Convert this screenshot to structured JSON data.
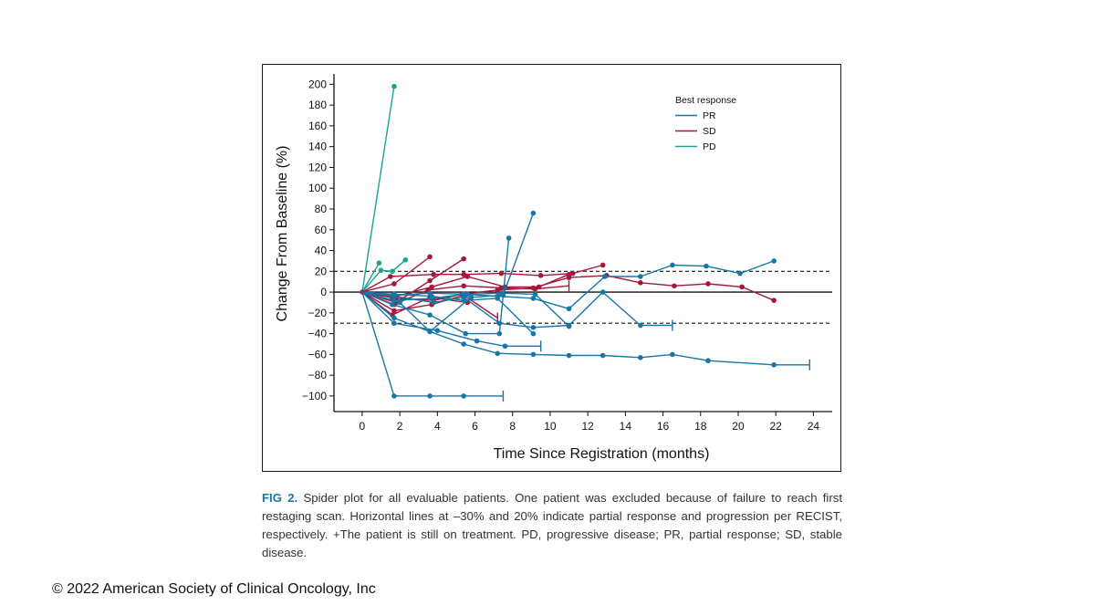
{
  "chart_data": {
    "type": "line",
    "xlabel": "Time Since Registration (months)",
    "ylabel": "Change From Baseline (%)",
    "xlim": [
      -1.5,
      25
    ],
    "ylim": [
      -115,
      210
    ],
    "x_ticks": [
      0,
      2,
      4,
      6,
      8,
      10,
      12,
      14,
      16,
      18,
      20,
      22,
      24
    ],
    "y_ticks": [
      200,
      180,
      160,
      140,
      120,
      100,
      80,
      60,
      40,
      20,
      0,
      -20,
      -40,
      -60,
      -80,
      -100
    ],
    "reference_lines": [
      {
        "y": 20,
        "style": "dashed"
      },
      {
        "y": 0,
        "style": "solid"
      },
      {
        "y": -30,
        "style": "dashed"
      }
    ],
    "legend": {
      "title": "Best response",
      "position": "top-right",
      "entries": [
        {
          "label": "PR",
          "color": "#1677a7"
        },
        {
          "label": "SD",
          "color": "#a6173b"
        },
        {
          "label": "PD",
          "color": "#1aa591"
        }
      ]
    },
    "series": [
      {
        "group": "PD",
        "color": "#1aa591",
        "points": [
          [
            0,
            0
          ],
          [
            1.7,
            198
          ]
        ]
      },
      {
        "group": "PD",
        "color": "#1aa591",
        "points": [
          [
            0,
            0
          ],
          [
            0.9,
            28
          ]
        ]
      },
      {
        "group": "PD",
        "color": "#1aa591",
        "points": [
          [
            0,
            0
          ],
          [
            1,
            21
          ],
          [
            1.6,
            20
          ],
          [
            2.3,
            31
          ]
        ]
      },
      {
        "group": "SD",
        "color": "#a6173b",
        "points": [
          [
            0,
            0
          ],
          [
            1.7,
            8
          ],
          [
            3.6,
            34
          ]
        ]
      },
      {
        "group": "SD",
        "color": "#a6173b",
        "points": [
          [
            0,
            0
          ],
          [
            1.8,
            -10
          ],
          [
            3.6,
            11
          ],
          [
            5.4,
            32
          ]
        ]
      },
      {
        "group": "SD",
        "color": "#a6173b",
        "points": [
          [
            0,
            0
          ],
          [
            1.5,
            15
          ],
          [
            3.8,
            17
          ],
          [
            5.4,
            17
          ],
          [
            7.4,
            18
          ],
          [
            9.5,
            16
          ],
          [
            11.2,
            18
          ],
          [
            12.8,
            26
          ]
        ]
      },
      {
        "group": "SD",
        "color": "#a6173b",
        "points": [
          [
            0,
            0
          ],
          [
            1.6,
            -5
          ],
          [
            3.7,
            5
          ],
          [
            5.6,
            15
          ],
          [
            7.6,
            5
          ],
          [
            9.4,
            5
          ],
          [
            11,
            17
          ]
        ]
      },
      {
        "group": "SD",
        "color": "#a6173b",
        "points": [
          [
            0,
            0
          ],
          [
            1.7,
            -12
          ],
          [
            3.5,
            2
          ],
          [
            5.4,
            6
          ],
          [
            7.4,
            4
          ],
          [
            9.2,
            3
          ],
          [
            11,
            6
          ]
        ],
        "end": "plus"
      },
      {
        "group": "SD",
        "color": "#a6173b",
        "points": [
          [
            0,
            0
          ],
          [
            1.7,
            -18
          ],
          [
            3.7,
            -12
          ],
          [
            5.4,
            -3
          ],
          [
            7.2,
            -25
          ]
        ],
        "end": "plus"
      },
      {
        "group": "SD",
        "color": "#a6173b",
        "points": [
          [
            0,
            0
          ],
          [
            1.6,
            -22
          ],
          [
            3.6,
            -5
          ],
          [
            5.6,
            -10
          ]
        ]
      },
      {
        "group": "SD",
        "color": "#a6173b",
        "points": [
          [
            0,
            0
          ],
          [
            1.8,
            -6
          ],
          [
            3.8,
            -8
          ],
          [
            5.3,
            -2
          ],
          [
            7.2,
            2
          ],
          [
            9.1,
            4
          ],
          [
            11,
            14
          ],
          [
            13,
            16
          ],
          [
            14.8,
            9
          ],
          [
            16.6,
            6
          ],
          [
            18.4,
            8
          ],
          [
            20.2,
            5
          ],
          [
            21.9,
            -8
          ]
        ]
      },
      {
        "group": "PR",
        "color": "#1677a7",
        "points": [
          [
            0,
            0
          ],
          [
            1.7,
            -100
          ],
          [
            3.6,
            -100
          ],
          [
            5.4,
            -100
          ],
          [
            7.5,
            -100
          ]
        ],
        "end": "plus"
      },
      {
        "group": "PR",
        "color": "#1677a7",
        "points": [
          [
            0,
            0
          ],
          [
            1.7,
            -25
          ],
          [
            3.6,
            -38
          ],
          [
            5.4,
            -50
          ],
          [
            7.2,
            -59
          ],
          [
            9.1,
            -60
          ],
          [
            11,
            -61
          ],
          [
            12.8,
            -61
          ],
          [
            14.8,
            -63
          ],
          [
            16.5,
            -60
          ],
          [
            18.4,
            -66
          ],
          [
            21.9,
            -70
          ],
          [
            23.8,
            -70
          ]
        ],
        "end": "plus"
      },
      {
        "group": "PR",
        "color": "#1677a7",
        "points": [
          [
            0,
            0
          ],
          [
            1.7,
            -30
          ],
          [
            4,
            -37
          ],
          [
            6.1,
            -47
          ],
          [
            7.6,
            -52
          ],
          [
            9.5,
            -52
          ]
        ],
        "end": "plus"
      },
      {
        "group": "PR",
        "color": "#1677a7",
        "points": [
          [
            0,
            0
          ],
          [
            1.6,
            -12
          ],
          [
            3.6,
            -22
          ],
          [
            5.5,
            -40
          ],
          [
            7.3,
            -40
          ],
          [
            7.8,
            52
          ]
        ]
      },
      {
        "group": "PR",
        "color": "#1677a7",
        "points": [
          [
            0,
            0
          ],
          [
            2,
            -10
          ],
          [
            3.6,
            -38
          ],
          [
            5.8,
            -5
          ],
          [
            7.5,
            -3
          ],
          [
            9.1,
            76
          ]
        ]
      },
      {
        "group": "PR",
        "color": "#1677a7",
        "points": [
          [
            0,
            0
          ],
          [
            1.7,
            -4
          ],
          [
            3.8,
            -10
          ],
          [
            5.4,
            -5
          ],
          [
            7.3,
            -30
          ],
          [
            9.1,
            -34
          ],
          [
            11,
            -32
          ],
          [
            12.8,
            0
          ],
          [
            14.8,
            -32
          ],
          [
            16.5,
            -32
          ]
        ],
        "end": "plus"
      },
      {
        "group": "PR",
        "color": "#1677a7",
        "points": [
          [
            0,
            0
          ],
          [
            1.7,
            -2
          ],
          [
            3.7,
            -4
          ],
          [
            5.4,
            -8
          ],
          [
            7.2,
            -6
          ],
          [
            9.1,
            -40
          ]
        ]
      },
      {
        "group": "PR",
        "color": "#1677a7",
        "points": [
          [
            0,
            0
          ],
          [
            1.7,
            -8
          ],
          [
            3.7,
            -6
          ],
          [
            5.4,
            -2
          ],
          [
            7.2,
            -4
          ],
          [
            9.1,
            -6
          ],
          [
            11,
            -16
          ],
          [
            12.9,
            15
          ],
          [
            14.8,
            15
          ],
          [
            16.5,
            26
          ],
          [
            18.3,
            25
          ],
          [
            20.1,
            18
          ],
          [
            21.9,
            30
          ]
        ]
      },
      {
        "group": "PR",
        "color": "#1677a7",
        "points": [
          [
            0,
            0
          ],
          [
            1.6,
            -3
          ],
          [
            3.6,
            -1
          ],
          [
            5.6,
            -2
          ],
          [
            7.4,
            -1
          ],
          [
            9.2,
            -2
          ],
          [
            11,
            -33
          ]
        ]
      }
    ]
  },
  "caption": {
    "label": "FIG 2.",
    "text": " Spider plot for all evaluable patients. One patient was excluded because of failure to reach first restaging scan. Horizontal lines at –30% and 20% indicate partial response and progression per RECIST, respectively. +The patient is still on treatment. PD, progressive disease; PR, partial response; SD, stable disease."
  },
  "copyright": "© 2022 American Society of Clinical Oncology, Inc"
}
